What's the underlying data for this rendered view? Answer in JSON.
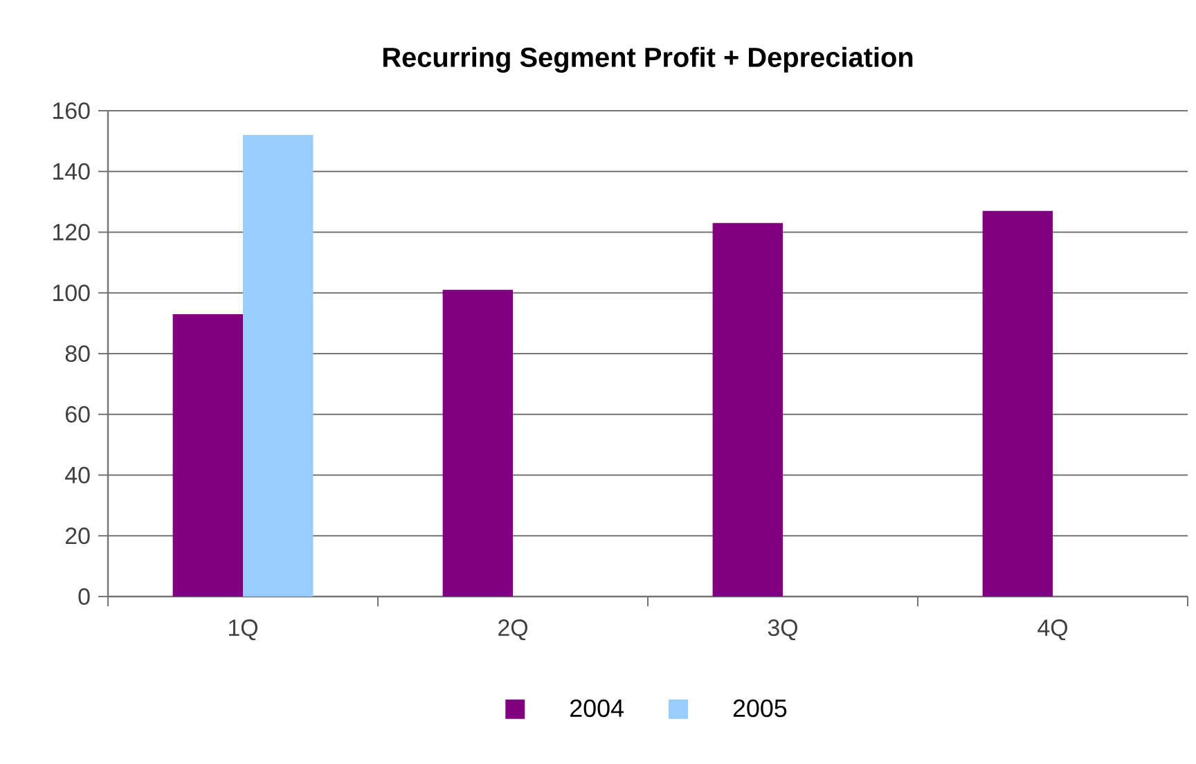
{
  "chart_data": {
    "type": "bar",
    "title": "Recurring Segment Profit + Depreciation",
    "categories": [
      "1Q",
      "2Q",
      "3Q",
      "4Q"
    ],
    "series": [
      {
        "name": "2004",
        "color": "#800080",
        "values": [
          93,
          101,
          123,
          127
        ]
      },
      {
        "name": "2005",
        "color": "#99ccff",
        "values": [
          152,
          null,
          null,
          null
        ]
      }
    ],
    "ylim": [
      0,
      160
    ],
    "yticks": [
      0,
      20,
      40,
      60,
      80,
      100,
      120,
      140,
      160
    ],
    "grid": "y",
    "legend": "bottom"
  }
}
